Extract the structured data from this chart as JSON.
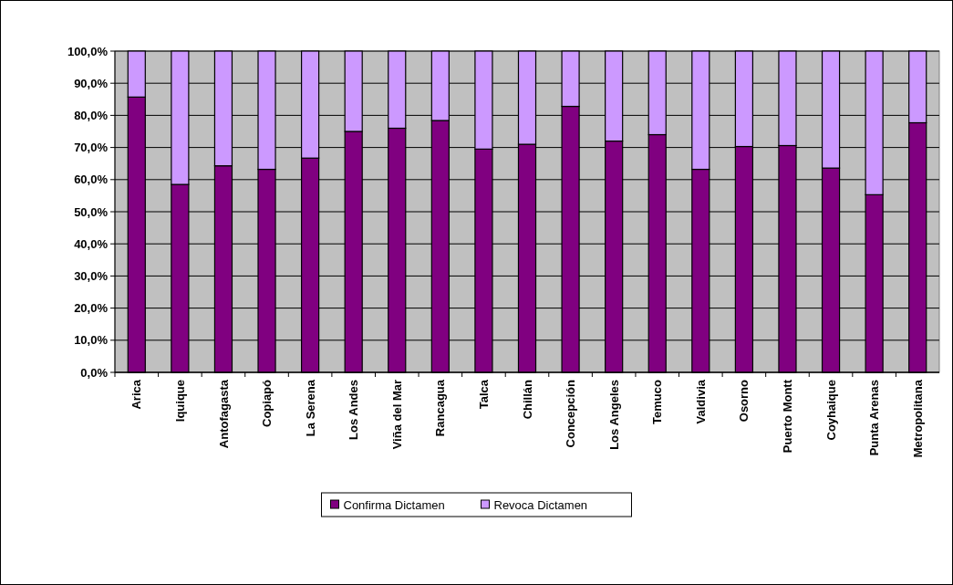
{
  "chart_data": {
    "type": "bar",
    "stacked": true,
    "categories": [
      "Arica",
      "Iquique",
      "Antofagasta",
      "Copiapó",
      "La Serena",
      "Los Andes",
      "Viña del Mar",
      "Rancagua",
      "Talca",
      "Chillán",
      "Concepción",
      "Los Angeles",
      "Temuco",
      "Valdivia",
      "Osorno",
      "Puerto Montt",
      "Coyhaique",
      "Punta Arenas",
      "Metropolitana"
    ],
    "series": [
      {
        "name": "Confirma Dictamen",
        "color": "#800080",
        "values": [
          85.7,
          58.5,
          64.3,
          63.2,
          66.7,
          75.0,
          76.0,
          78.4,
          69.5,
          71.0,
          82.8,
          72.0,
          74.0,
          63.2,
          70.3,
          70.6,
          63.6,
          55.3,
          77.7
        ]
      },
      {
        "name": "Revoca Dictamen",
        "color": "#cc99ff",
        "values": [
          14.3,
          41.5,
          35.7,
          36.8,
          33.3,
          25.0,
          24.0,
          21.6,
          30.5,
          29.0,
          17.2,
          28.0,
          26.0,
          36.8,
          29.7,
          29.4,
          36.4,
          44.7,
          22.3
        ]
      }
    ],
    "ylim": [
      0,
      100
    ],
    "yticks": [
      {
        "value": 0,
        "label": "0,0%"
      },
      {
        "value": 10,
        "label": "10,0%"
      },
      {
        "value": 20,
        "label": "20,0%"
      },
      {
        "value": 30,
        "label": "30,0%"
      },
      {
        "value": 40,
        "label": "40,0%"
      },
      {
        "value": 50,
        "label": "50,0%"
      },
      {
        "value": 60,
        "label": "60,0%"
      },
      {
        "value": 70,
        "label": "70,0%"
      },
      {
        "value": 80,
        "label": "80,0%"
      },
      {
        "value": 90,
        "label": "90,0%"
      },
      {
        "value": 100,
        "label": "100,0%"
      }
    ],
    "grid": "y",
    "legend": "bottom"
  }
}
